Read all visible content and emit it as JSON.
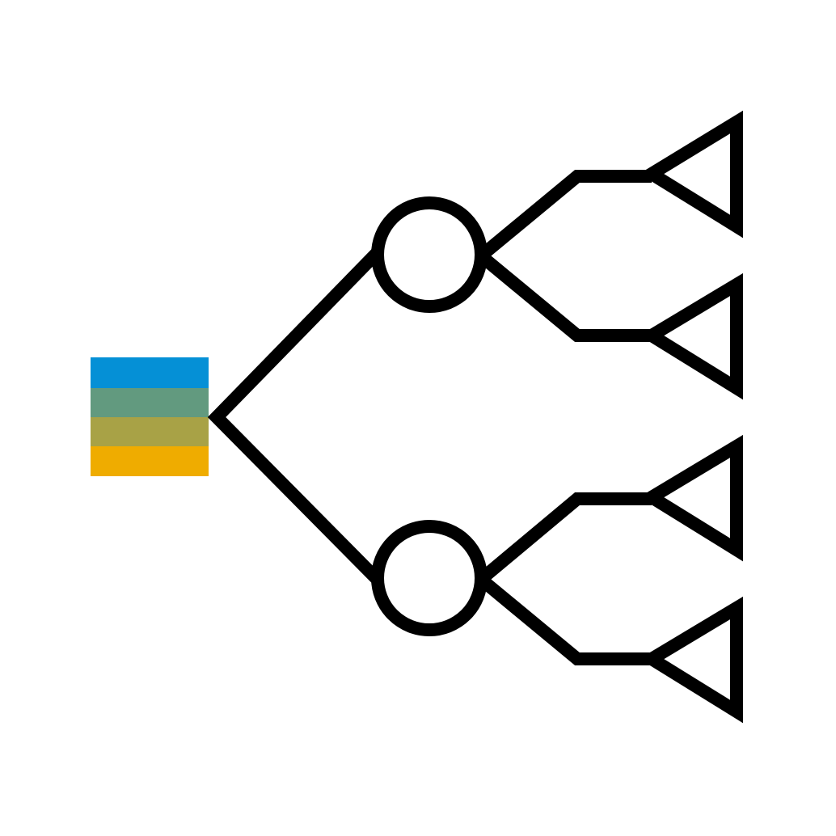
{
  "diagram": {
    "type": "decision-tree-icon",
    "root": {
      "shape": "square",
      "stripes": [
        "#0590D6",
        "#629A7F",
        "#A8A246",
        "#EFAC00"
      ]
    },
    "chance_nodes": [
      "circle",
      "circle"
    ],
    "terminal_nodes": [
      "triangle",
      "triangle",
      "triangle",
      "triangle"
    ],
    "stroke_color": "#000000",
    "background": "#FFFFFF"
  }
}
